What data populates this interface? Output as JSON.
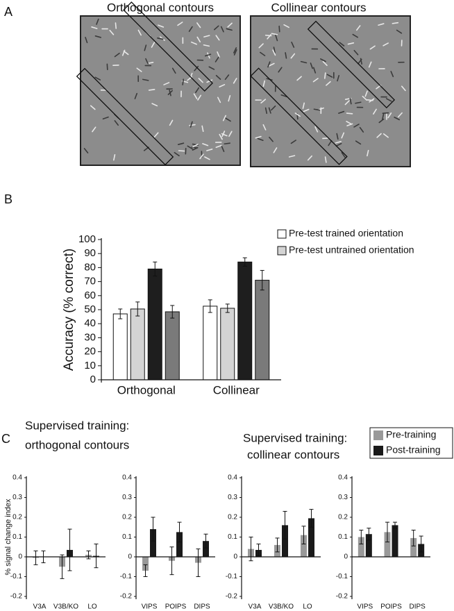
{
  "panel_labels": [
    "A",
    "B",
    "C"
  ],
  "panel_a": {
    "titles": [
      "Orthogonal contours",
      "Collinear contours"
    ]
  },
  "panel_c": {
    "headings": [
      [
        "Supervised training:",
        "orthogonal contours"
      ],
      [
        "Supervised training:",
        "collinear contours"
      ]
    ]
  },
  "chart_data": [
    {
      "type": "bar",
      "categories": [
        "Orthogonal",
        "Collinear"
      ],
      "y_label": "Accuracy (% correct)",
      "ylim": [
        0,
        100
      ],
      "yticks": [
        0,
        10,
        20,
        30,
        40,
        50,
        60,
        70,
        80,
        90,
        100
      ],
      "legend": "top-right",
      "series": [
        {
          "name": "Pre-test trained orientation",
          "color": "#ffffff",
          "values": [
            47,
            52.5
          ],
          "errors": [
            3.5,
            4.5
          ]
        },
        {
          "name": "Pre-test untrained orientation",
          "color": "#d4d4d4",
          "values": [
            50.5,
            51
          ],
          "errors": [
            5,
            3
          ]
        },
        {
          "color": "#1e1e1e",
          "values": [
            79,
            84
          ],
          "errors": [
            5,
            3
          ]
        },
        {
          "color": "#7a7a7a",
          "values": [
            48.5,
            71
          ],
          "errors": [
            4.5,
            7
          ]
        }
      ]
    },
    {
      "type": "bar",
      "categories": [
        "V3A",
        "V3B/KO",
        "LO"
      ],
      "y_label": "% signal change index",
      "ylim": [
        -0.2,
        0.4
      ],
      "yticks": [
        -0.2,
        -0.1,
        0,
        0.1,
        0.2,
        0.3,
        0.4
      ],
      "series": [
        {
          "color": "#999999",
          "values": [
            -0.005,
            -0.05,
            0.01
          ],
          "errors": [
            0.035,
            0.06,
            0.02
          ]
        },
        {
          "color": "#1a1a1a",
          "values": [
            0.0,
            0.035,
            0.005
          ],
          "errors": [
            0.03,
            0.105,
            0.06
          ]
        }
      ]
    },
    {
      "type": "bar",
      "categories": [
        "VIPS",
        "POIPS",
        "DIPS"
      ],
      "ylim": [
        -0.2,
        0.4
      ],
      "yticks": [
        -0.2,
        -0.1,
        0,
        0.1,
        0.2,
        0.3,
        0.4
      ],
      "series": [
        {
          "color": "#999999",
          "values": [
            -0.07,
            -0.02,
            -0.03
          ],
          "errors": [
            0.03,
            0.07,
            0.07
          ]
        },
        {
          "color": "#1a1a1a",
          "values": [
            0.14,
            0.125,
            0.08
          ],
          "errors": [
            0.06,
            0.05,
            0.035
          ]
        }
      ]
    },
    {
      "type": "bar",
      "categories": [
        "V3A",
        "V3B/KO",
        "LO"
      ],
      "ylim": [
        -0.2,
        0.4
      ],
      "yticks": [
        -0.2,
        -0.1,
        0,
        0.1,
        0.2,
        0.3,
        0.4
      ],
      "series": [
        {
          "color": "#999999",
          "values": [
            0.04,
            0.06,
            0.11
          ],
          "errors": [
            0.06,
            0.035,
            0.045
          ]
        },
        {
          "color": "#1a1a1a",
          "values": [
            0.035,
            0.16,
            0.195
          ],
          "errors": [
            0.03,
            0.07,
            0.045
          ]
        }
      ]
    },
    {
      "type": "bar",
      "categories": [
        "VIPS",
        "POIPS",
        "DIPS"
      ],
      "legend": "top-right",
      "ylim": [
        -0.2,
        0.4
      ],
      "yticks": [
        -0.2,
        -0.1,
        0,
        0.1,
        0.2,
        0.3,
        0.4
      ],
      "series": [
        {
          "name": "Pre-training",
          "color": "#999999",
          "values": [
            0.1,
            0.125,
            0.095
          ],
          "errors": [
            0.035,
            0.05,
            0.04
          ]
        },
        {
          "name": "Post-training",
          "color": "#1a1a1a",
          "values": [
            0.115,
            0.16,
            0.065
          ],
          "errors": [
            0.03,
            0.015,
            0.04
          ]
        }
      ]
    }
  ]
}
